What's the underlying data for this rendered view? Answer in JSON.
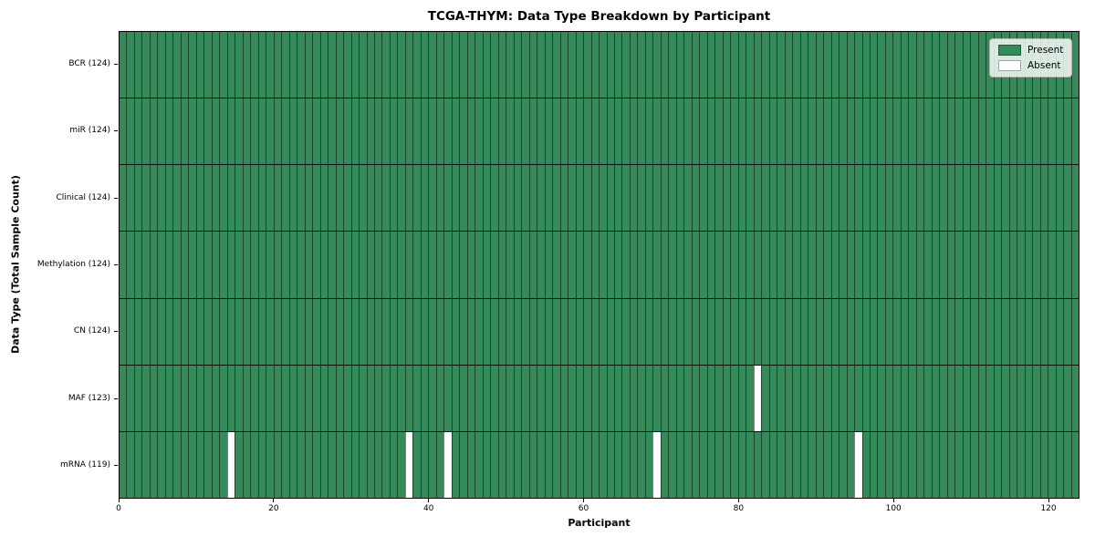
{
  "chart_data": {
    "type": "heatmap",
    "title": "TCGA-THYM: Data Type Breakdown by Participant",
    "xlabel": "Participant",
    "ylabel": "Data Type (Total Sample Count)",
    "xlim": [
      0,
      124
    ],
    "n_participants": 124,
    "x_ticks": [
      0,
      20,
      40,
      60,
      80,
      100,
      120
    ],
    "grid": false,
    "legend_position": "upper right",
    "legend": [
      {
        "label": "Present",
        "color": "#348a58"
      },
      {
        "label": "Absent",
        "color": "#ffffff"
      }
    ],
    "rows": [
      {
        "data_type": "BCR",
        "tick_label": "BCR (124)",
        "total_samples": 124,
        "absent_participant_indices": []
      },
      {
        "data_type": "miR",
        "tick_label": "miR (124)",
        "total_samples": 124,
        "absent_participant_indices": []
      },
      {
        "data_type": "Clinical",
        "tick_label": "Clinical (124)",
        "total_samples": 124,
        "absent_participant_indices": []
      },
      {
        "data_type": "Methylation",
        "tick_label": "Methylation (124)",
        "total_samples": 124,
        "absent_participant_indices": []
      },
      {
        "data_type": "CN",
        "tick_label": "CN (124)",
        "total_samples": 124,
        "absent_participant_indices": []
      },
      {
        "data_type": "MAF",
        "tick_label": "MAF (123)",
        "total_samples": 123,
        "absent_participant_indices": [
          82
        ]
      },
      {
        "data_type": "mRNA",
        "tick_label": "mRNA (119)",
        "total_samples": 119,
        "absent_participant_indices": [
          14,
          37,
          42,
          69,
          95
        ]
      }
    ],
    "colors": {
      "present": "#348a58",
      "absent": "#ffffff",
      "cell_edge": "rgba(0,0,0,0.5)",
      "row_separator": "#0d0d0d",
      "spine": "#000000"
    }
  }
}
